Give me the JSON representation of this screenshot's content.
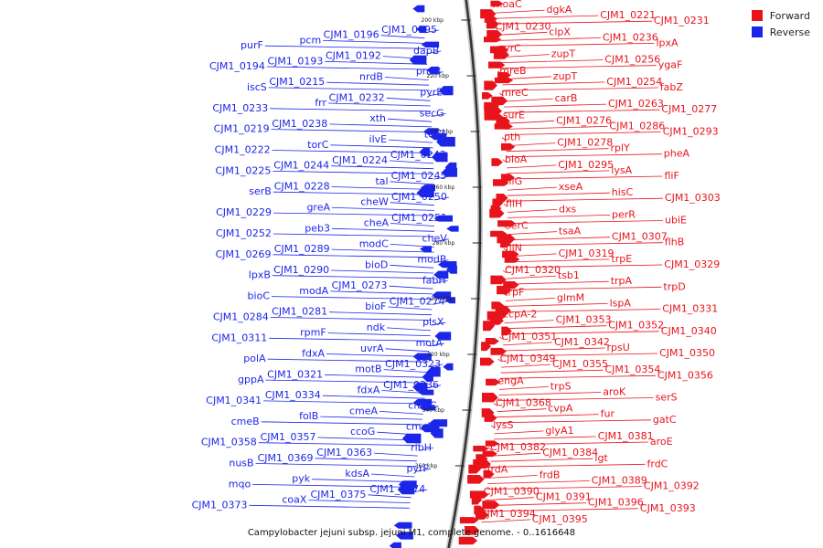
{
  "legend": {
    "items": [
      {
        "label": "Forward",
        "color": "#e8141c"
      },
      {
        "label": "Reverse",
        "color": "#1c26e8"
      }
    ]
  },
  "caption": "Campylobacter jejuni subsp. jejuni M1, complete genome. - 0..1616648",
  "ticks": [
    "200 kbp",
    "220 kbp",
    "240 kbp",
    "260 kbp",
    "280 kbp",
    "300 kbp",
    "320 kbp",
    "340 kbp",
    "360 kbp"
  ],
  "forward_labels": [
    "moaC",
    "dgkA",
    "CJM1_0221",
    "CJM1_0231",
    "CJM1_0230",
    "clpX",
    "CJM1_0236",
    "lpxA",
    "pyrC",
    "zupT",
    "CJM1_0256",
    "ygaF",
    "mreB",
    "zupT",
    "CJM1_0254",
    "fabZ",
    "mreC",
    "carB",
    "CJM1_0263",
    "CJM1_0277",
    "surE",
    "CJM1_0276",
    "CJM1_0286",
    "CJM1_0293",
    "pth",
    "CJM1_0278",
    "rplY",
    "pheA",
    "bioA",
    "CJM1_0295",
    "lysA",
    "fliF",
    "fliG",
    "xseA",
    "hisC",
    "CJM1_0303",
    "fliH",
    "dxs",
    "perR",
    "ubiE",
    "serC",
    "tsaA",
    "CJM1_0307",
    "flhB",
    "fliN",
    "CJM1_0319",
    "trpE",
    "CJM1_0329",
    "CJM1_0320",
    "tsb1",
    "trpA",
    "trpD",
    "trpF",
    "glmM",
    "lspA",
    "CJM1_0331",
    "ccpA-2",
    "CJM1_0353",
    "CJM1_0352",
    "CJM1_0340",
    "CJM1_0351",
    "CJM1_0342",
    "rpsU",
    "CJM1_0350",
    "CJM1_0349",
    "CJM1_0355",
    "CJM1_0354",
    "CJM1_0356",
    "engA",
    "trpS",
    "aroK",
    "serS",
    "CJM1_0368",
    "cvpA",
    "fur",
    "gatC",
    "lysS",
    "glyA1",
    "CJM1_0381",
    "aroE",
    "CJM1_0382",
    "CJM1_0384",
    "lgt",
    "frdC",
    "frdA",
    "frdB",
    "CJM1_0389",
    "CJM1_0392",
    "CJM1_0390",
    "CJM1_0391",
    "CJM1_0396",
    "CJM1_0393",
    "CJM1_0394",
    "CJM1_0395"
  ],
  "reverse_labels": [
    "CJM1_0195",
    "CJM1_0196",
    "pcm",
    "purF",
    "dapB",
    "CJM1_0192",
    "CJM1_0193",
    "CJM1_0194",
    "pncB",
    "nrdB",
    "CJM1_0215",
    "iscS",
    "pyrE",
    "CJM1_0232",
    "frr",
    "CJM1_0233",
    "secG",
    "xth",
    "CJM1_0238",
    "CJM1_0219",
    "torZ",
    "ilvE",
    "torC",
    "CJM1_0222",
    "CJM1_0243",
    "CJM1_0224",
    "CJM1_0244",
    "CJM1_0225",
    "CJM1_0245",
    "tal",
    "CJM1_0228",
    "serB",
    "CJM1_0250",
    "cheW",
    "greA",
    "CJM1_0229",
    "CJM1_0251",
    "cheA",
    "peb3",
    "CJM1_0252",
    "cheV",
    "modC",
    "CJM1_0289",
    "CJM1_0269",
    "modB",
    "bioD",
    "CJM1_0290",
    "lpxB",
    "fabH",
    "CJM1_0273",
    "modA",
    "bioC",
    "CJM1_0274",
    "bioF",
    "CJM1_0281",
    "CJM1_0284",
    "plsX",
    "ndk",
    "rpmF",
    "CJM1_0311",
    "motA",
    "uvrA",
    "fdxA",
    "polA",
    "CJM1_0323",
    "motB",
    "CJM1_0321",
    "gppA",
    "CJM1_0336",
    "fdxA",
    "CJM1_0334",
    "CJM1_0341",
    "cmeC",
    "cmeA",
    "folB",
    "cmeB",
    "cmeR",
    "ccoG",
    "CJM1_0357",
    "CJM1_0358",
    "ribH",
    "CJM1_0363",
    "CJM1_0369",
    "nusB",
    "pyrF",
    "kdsA",
    "pyk",
    "mqo",
    "CJM1_0374",
    "CJM1_0375",
    "coaX",
    "CJM1_0373"
  ]
}
